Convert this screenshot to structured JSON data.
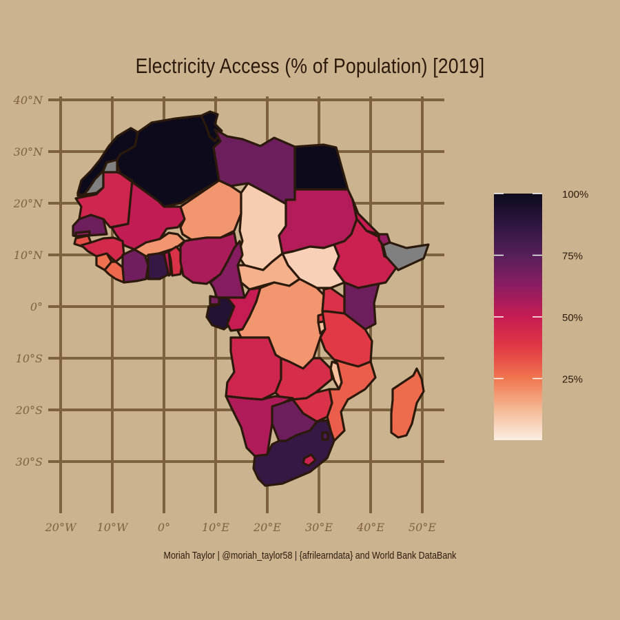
{
  "title": "Electricity Access (% of Population) [2019]",
  "caption": "Moriah Taylor | @moriah_taylor58 | {afrilearndata} and World Bank DataBank",
  "chart_data": {
    "type": "choropleth",
    "measure": "Electricity access (% of population)",
    "year": 2019,
    "graticule": {
      "lat_labels": [
        "40°N",
        "30°N",
        "20°N",
        "10°N",
        "0°",
        "10°S",
        "20°S",
        "30°S"
      ],
      "lon_labels": [
        "20°W",
        "10°W",
        "0°",
        "10°E",
        "20°E",
        "30°E",
        "40°E",
        "50°E"
      ]
    },
    "legend": {
      "min": 0,
      "max": 100,
      "ticks": [
        25,
        50,
        75,
        100
      ],
      "tick_labels": [
        "25%",
        "50%",
        "75%",
        "100%"
      ],
      "palette": [
        "#fbeee3",
        "#f5b994",
        "#f0764f",
        "#e23a45",
        "#c61c53",
        "#8c1d62",
        "#561f59",
        "#2e1640",
        "#0d0a1c"
      ]
    },
    "no_data_color": "#808080",
    "regions": [
      {
        "name": "Morocco",
        "value": 100
      },
      {
        "name": "Algeria",
        "value": 100
      },
      {
        "name": "Tunisia",
        "value": 100
      },
      {
        "name": "Libya",
        "value": 70
      },
      {
        "name": "Egypt",
        "value": 100
      },
      {
        "name": "Western Sahara",
        "value": null
      },
      {
        "name": "Mauritania",
        "value": 46
      },
      {
        "name": "Mali",
        "value": 51
      },
      {
        "name": "Niger",
        "value": 19
      },
      {
        "name": "Chad",
        "value": 8
      },
      {
        "name": "Sudan",
        "value": 54
      },
      {
        "name": "South Sudan",
        "value": 7
      },
      {
        "name": "Eritrea",
        "value": 50
      },
      {
        "name": "Ethiopia",
        "value": 48
      },
      {
        "name": "Djibouti",
        "value": 61
      },
      {
        "name": "Somalia",
        "value": null
      },
      {
        "name": "Senegal",
        "value": 70
      },
      {
        "name": "Gambia",
        "value": 62
      },
      {
        "name": "Guinea-Bissau",
        "value": 33
      },
      {
        "name": "Guinea",
        "value": 44
      },
      {
        "name": "Sierra Leone",
        "value": 26
      },
      {
        "name": "Liberia",
        "value": 28
      },
      {
        "name": "Cote d'Ivoire",
        "value": 69
      },
      {
        "name": "Burkina Faso",
        "value": 19
      },
      {
        "name": "Ghana",
        "value": 85
      },
      {
        "name": "Togo",
        "value": 52
      },
      {
        "name": "Benin",
        "value": 41
      },
      {
        "name": "Nigeria",
        "value": 56
      },
      {
        "name": "Cameroon",
        "value": 64
      },
      {
        "name": "Central African Republic",
        "value": 14
      },
      {
        "name": "Equatorial Guinea",
        "value": 67
      },
      {
        "name": "Gabon",
        "value": 92
      },
      {
        "name": "Congo",
        "value": 50
      },
      {
        "name": "DR Congo",
        "value": 19
      },
      {
        "name": "Uganda",
        "value": 41
      },
      {
        "name": "Kenya",
        "value": 70
      },
      {
        "name": "Rwanda",
        "value": 38
      },
      {
        "name": "Burundi",
        "value": 11
      },
      {
        "name": "Tanzania",
        "value": 38
      },
      {
        "name": "Angola",
        "value": 46
      },
      {
        "name": "Zambia",
        "value": 43
      },
      {
        "name": "Malawi",
        "value": 11
      },
      {
        "name": "Mozambique",
        "value": 30
      },
      {
        "name": "Zimbabwe",
        "value": 41
      },
      {
        "name": "Namibia",
        "value": 55
      },
      {
        "name": "Botswana",
        "value": 70
      },
      {
        "name": "South Africa",
        "value": 85
      },
      {
        "name": "Lesotho",
        "value": 47
      },
      {
        "name": "Swaziland",
        "value": 78
      },
      {
        "name": "Madagascar",
        "value": 27
      }
    ]
  }
}
